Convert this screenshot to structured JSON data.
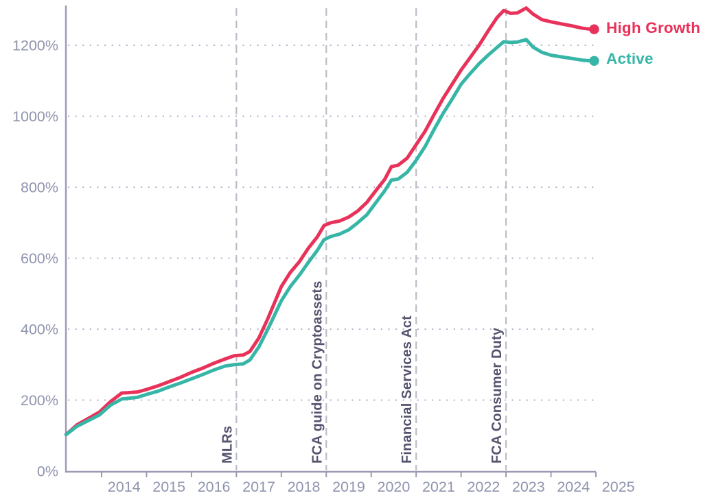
{
  "chart_data": {
    "type": "line",
    "title": "",
    "xlabel": "",
    "ylabel": "",
    "y_unit": "%",
    "grid": "dotted-horizontal",
    "legend_position": "line-end-right",
    "xlim": [
      2013.206,
      2025
    ],
    "ylim": [
      0,
      1310
    ],
    "y_ticks": [
      0,
      200,
      400,
      600,
      800,
      1000,
      1200
    ],
    "x_tick_years": [
      2014,
      2015,
      2016,
      2017,
      2018,
      2019,
      2020,
      2021,
      2022,
      2023,
      2024,
      2025
    ],
    "x_label_years": [
      2014,
      2015,
      2016,
      2017,
      2018,
      2019,
      2020,
      2021,
      2022,
      2023,
      2024,
      2025
    ],
    "x": [
      2013.21,
      2013.45,
      2013.7,
      2013.95,
      2014.2,
      2014.45,
      2014.6,
      2014.8,
      2015.0,
      2015.25,
      2015.5,
      2015.75,
      2016.0,
      2016.25,
      2016.5,
      2016.75,
      2016.95,
      2017.15,
      2017.3,
      2017.5,
      2017.7,
      2017.85,
      2018.0,
      2018.2,
      2018.4,
      2018.6,
      2018.8,
      2018.95,
      2019.1,
      2019.3,
      2019.5,
      2019.7,
      2019.9,
      2020.1,
      2020.3,
      2020.45,
      2020.6,
      2020.8,
      2021.0,
      2021.2,
      2021.4,
      2021.6,
      2021.8,
      2022.0,
      2022.2,
      2022.4,
      2022.6,
      2022.8,
      2022.95,
      2023.1,
      2023.25,
      2023.45,
      2023.6,
      2023.8,
      2024.0,
      2024.2,
      2024.45,
      2024.7,
      2024.9
    ],
    "series": [
      {
        "name": "High Growth",
        "color": "#e8325a",
        "values": [
          103,
          130,
          148,
          166,
          196,
          220,
          221,
          223,
          230,
          240,
          252,
          264,
          278,
          290,
          304,
          316,
          325,
          327,
          337,
          375,
          430,
          475,
          520,
          560,
          590,
          628,
          660,
          692,
          700,
          705,
          716,
          733,
          757,
          790,
          822,
          858,
          862,
          882,
          920,
          958,
          1005,
          1050,
          1090,
          1130,
          1165,
          1200,
          1240,
          1278,
          1298,
          1290,
          1291,
          1305,
          1288,
          1272,
          1266,
          1261,
          1255,
          1248,
          1245
        ]
      },
      {
        "name": "Active",
        "color": "#37b6a7",
        "values": [
          103,
          126,
          142,
          158,
          186,
          203,
          205,
          208,
          216,
          225,
          237,
          248,
          260,
          272,
          285,
          296,
          300,
          302,
          313,
          350,
          400,
          440,
          480,
          520,
          552,
          588,
          622,
          652,
          661,
          668,
          680,
          700,
          722,
          756,
          790,
          820,
          823,
          842,
          876,
          915,
          963,
          1008,
          1048,
          1090,
          1120,
          1148,
          1172,
          1194,
          1210,
          1208,
          1209,
          1216,
          1195,
          1180,
          1172,
          1168,
          1163,
          1158,
          1156
        ]
      }
    ],
    "annotations": [
      {
        "label": "MLRs",
        "year": 2017
      },
      {
        "label": "FCA guide on Cryptoassets",
        "year": 2019
      },
      {
        "label": "Financial Services Act",
        "year": 2021
      },
      {
        "label": "FCA Consumer Duty",
        "year": 2023
      }
    ],
    "colors": {
      "background": "#ffffff",
      "axis": "#9a9ab2",
      "tick_text": "#9094ae",
      "grid_dots": "#b2b2cb",
      "event_line": "#bdbdc7",
      "annotation_text": "#54546f"
    }
  }
}
